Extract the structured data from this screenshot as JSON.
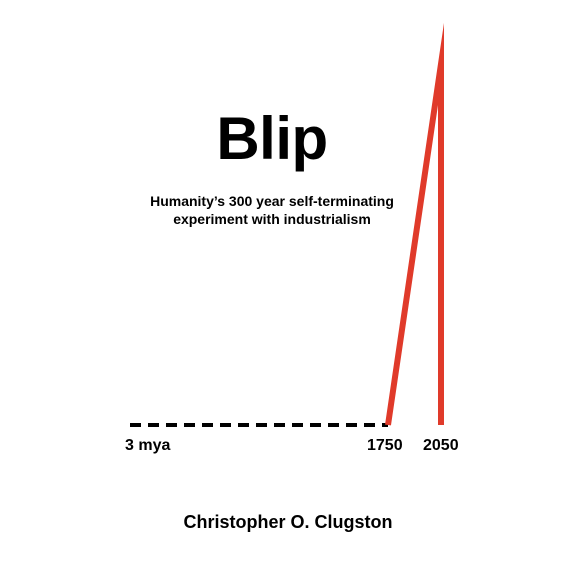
{
  "title": "Blip",
  "subtitle": {
    "line1": "Humanity’s 300 year self-terminating",
    "line2": "experiment with industrialism"
  },
  "timeline": {
    "start_label": "3 mya",
    "rise_label": "1750",
    "peak_label": "2050",
    "baseline_color": "#000000",
    "spike_color": "#e03a2a"
  },
  "author": "Christopher O. Clugston"
}
